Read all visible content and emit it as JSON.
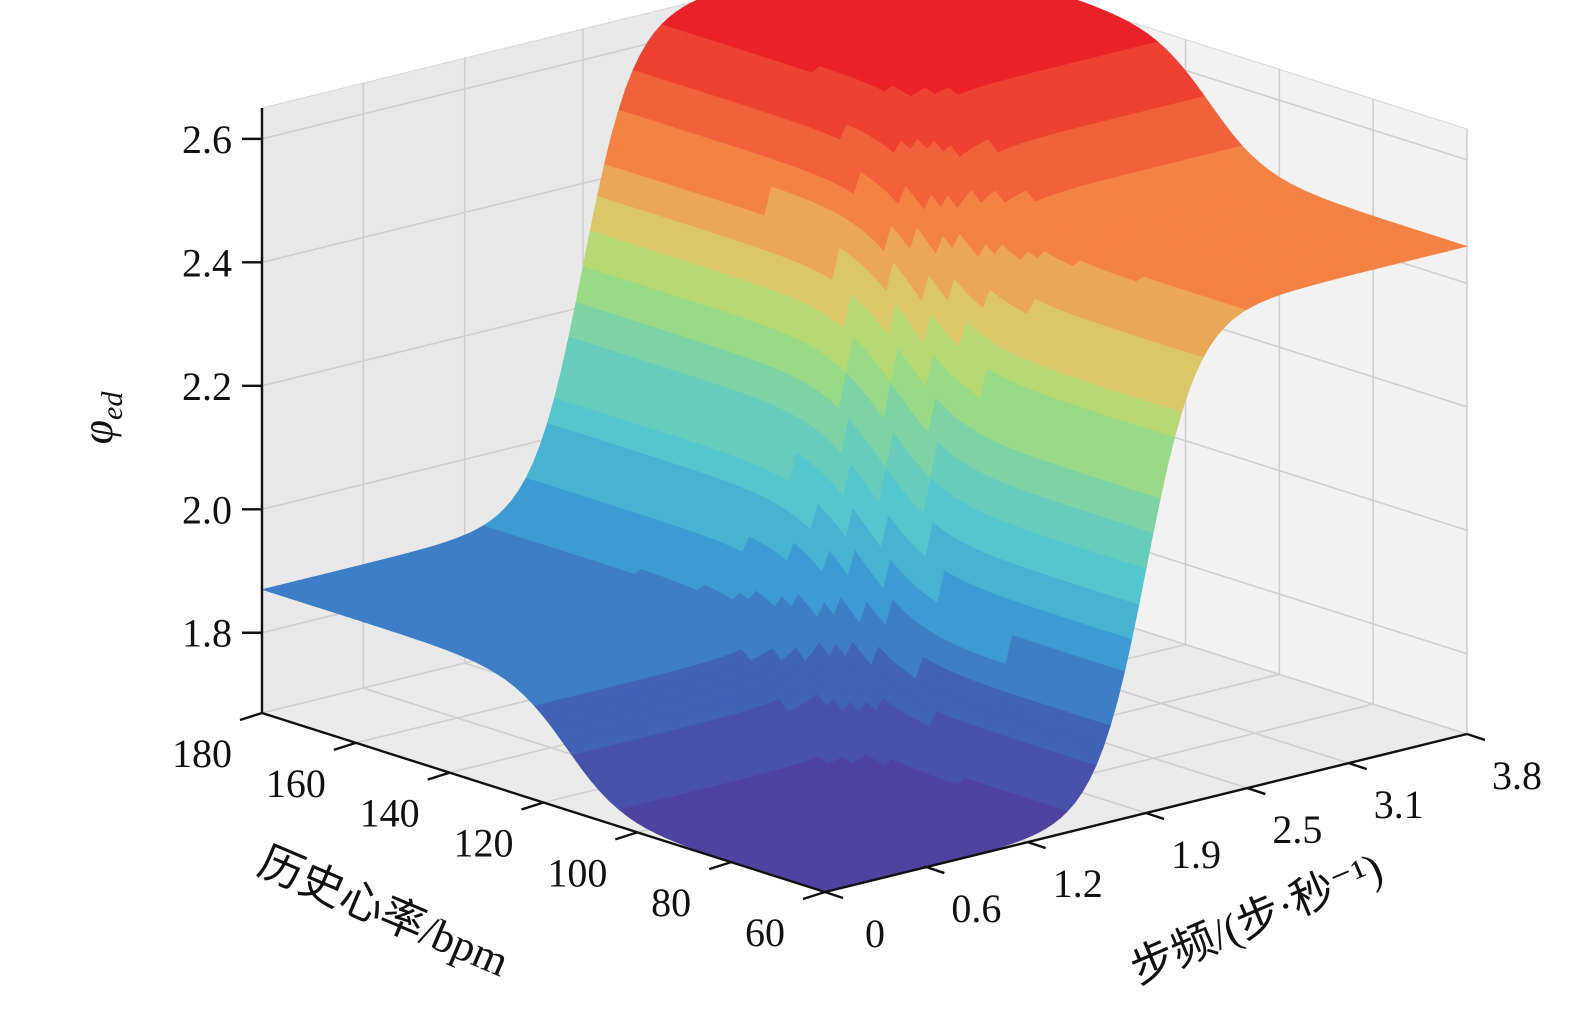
{
  "chart_data": {
    "type": "surface",
    "zlabel_main": "φ",
    "zlabel_sub": "ed",
    "xlabel": "历史心率/bpm",
    "ylabel": "步频/(步·秒⁻¹)",
    "x_ticks": [
      "180",
      "160",
      "140",
      "120",
      "100",
      "80",
      "60"
    ],
    "y_ticks": [
      "0",
      "0.6",
      "1.2",
      "1.9",
      "2.5",
      "3.1",
      "3.8"
    ],
    "z_ticks": [
      "1.8",
      "2.0",
      "2.2",
      "2.4",
      "2.6"
    ],
    "x_values": [
      180,
      160,
      140,
      120,
      100,
      80,
      60
    ],
    "y_values": [
      0,
      0.6,
      1.2,
      1.9,
      2.5,
      3.1,
      3.8
    ],
    "z_values": [
      1.8,
      2.0,
      2.2,
      2.4,
      2.6
    ],
    "xlim": [
      60,
      180
    ],
    "ylim": [
      0,
      3.8
    ],
    "zlim": [
      1.67,
      2.65
    ],
    "surface": {
      "description_levels": {
        "low_hr_low_cadence": 1.67,
        "high_hr_low_cadence": 1.87,
        "low_hr_high_cadence": 2.46,
        "high_hr_high_cadence": 2.66
      },
      "hr_transition_center": 115,
      "cadence_transition_center": 1.9
    },
    "colormap": "rainbow (blue-green-yellow-red)",
    "grid": true
  }
}
